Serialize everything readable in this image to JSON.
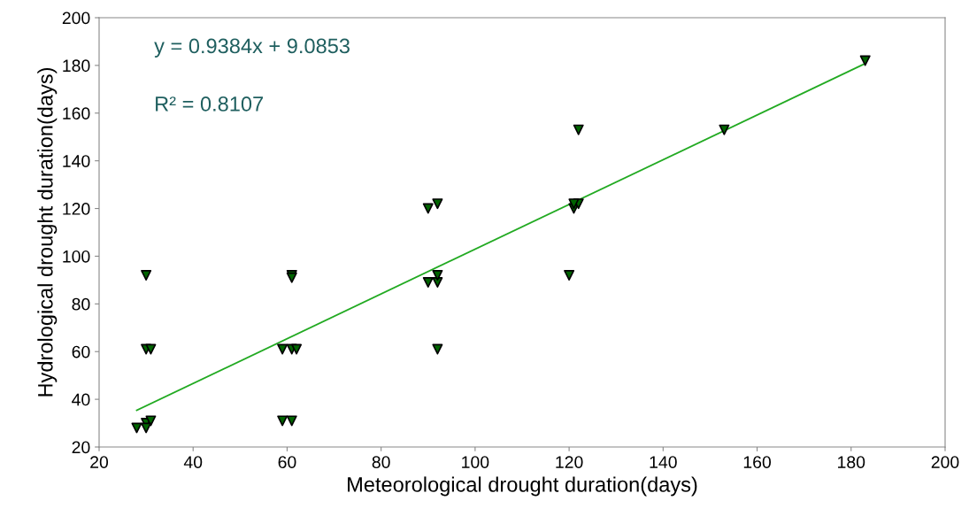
{
  "chart_data": {
    "type": "scatter",
    "xlabel": "Meteorological drought duration(days)",
    "ylabel": "Hydrological drought duration(days)",
    "annotations": [
      "y = 0.9384x + 9.0853",
      "R² = 0.8107"
    ],
    "xlim": [
      20,
      200
    ],
    "ylim": [
      20,
      200
    ],
    "xticks": [
      20,
      40,
      60,
      80,
      100,
      120,
      140,
      160,
      180,
      200
    ],
    "yticks": [
      20,
      40,
      60,
      80,
      100,
      120,
      140,
      160,
      180,
      200
    ],
    "grid": false,
    "legend": false,
    "marker": "triangle",
    "series": [
      {
        "color": "#006400",
        "x": [
          28,
          30,
          31,
          30,
          30,
          31,
          30,
          59,
          61,
          59,
          61,
          62,
          61,
          61,
          90,
          92,
          92,
          90,
          92,
          92,
          120,
          121,
          122,
          121,
          122,
          153,
          183
        ],
        "values": [
          28,
          30,
          31,
          28,
          61,
          61,
          92,
          31,
          31,
          61,
          61,
          61,
          92,
          91,
          89,
          89,
          92,
          120,
          122,
          61,
          92,
          120,
          122,
          122,
          153,
          153,
          182
        ]
      },
      {
        "type": "line",
        "color": "#22aa22",
        "line_style": "solid",
        "marker": "none",
        "x": [
          28,
          183
        ],
        "values": [
          35.4,
          180.8
        ]
      }
    ]
  }
}
